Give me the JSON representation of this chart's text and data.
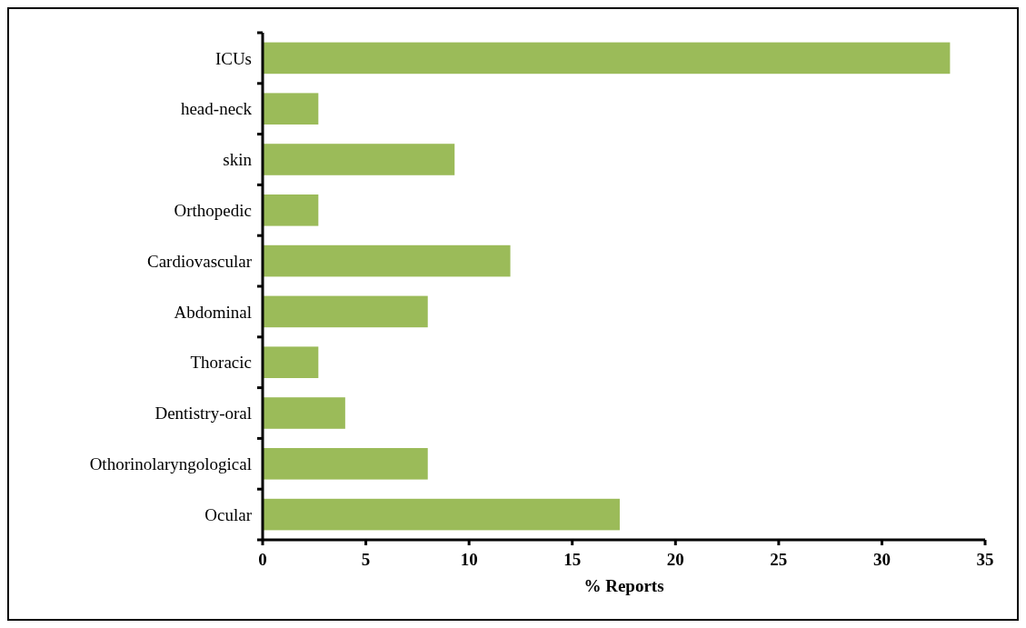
{
  "chart_data": {
    "type": "bar",
    "orientation": "horizontal",
    "xlabel": "% Reports",
    "categories": [
      "ICUs",
      "head-neck ",
      "skin",
      "Orthopedic ",
      "Cardiovascular",
      "Abdominal",
      "Thoracic ",
      "Dentistry-oral",
      "Othorinolaryngological",
      "Ocular"
    ],
    "values": [
      33.3,
      2.7,
      9.3,
      2.7,
      12.0,
      8.0,
      2.7,
      4.0,
      8.0,
      17.3
    ],
    "color": "#9bbb59",
    "xlim": [
      0,
      35
    ],
    "xticks": [
      0,
      5,
      10,
      15,
      20,
      25,
      30,
      35
    ],
    "grid": false
  }
}
